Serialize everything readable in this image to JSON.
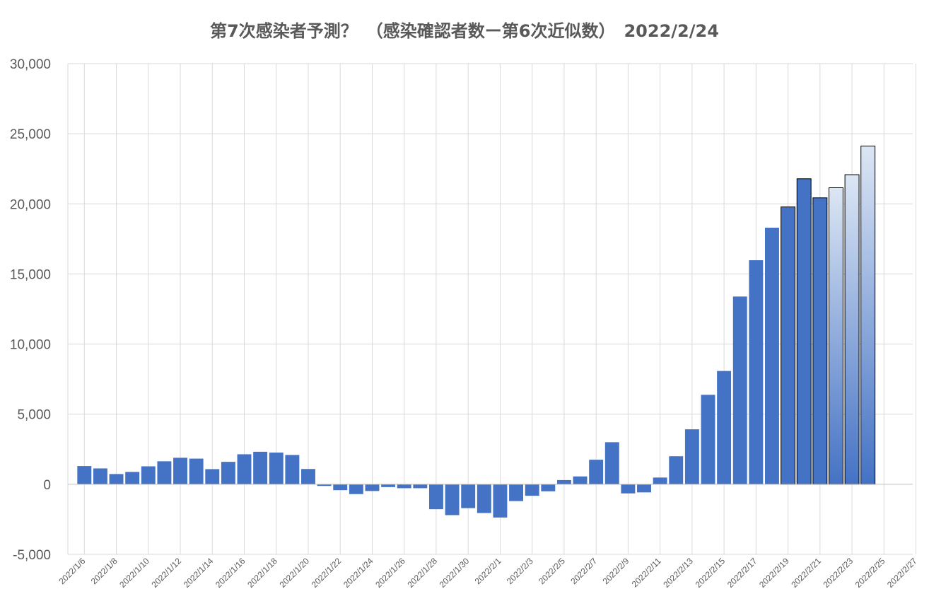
{
  "chart_data": {
    "type": "bar",
    "title": "第7次感染者予測？　（感染確認者数ー第6次近似数）　2022/2/24",
    "xlabel": "",
    "ylabel": "",
    "ylim": [
      -5000,
      30000
    ],
    "yticks": [
      30000,
      25000,
      20000,
      15000,
      10000,
      5000,
      0,
      -5000
    ],
    "ytick_labels": [
      "30,000",
      "25,000",
      "20,000",
      "15,000",
      "10,000",
      "5,000",
      "0",
      "-5,000"
    ],
    "x_range": [
      "2022/1/6",
      "2022/2/27"
    ],
    "xtick_labels": [
      "2022/1/6",
      "2022/1/8",
      "2022/1/10",
      "2022/1/12",
      "2022/1/14",
      "2022/1/16",
      "2022/1/18",
      "2022/1/20",
      "2022/1/22",
      "2022/1/24",
      "2022/1/26",
      "2022/1/28",
      "2022/1/30",
      "2022/2/1",
      "2022/2/3",
      "2022/2/5",
      "2022/2/7",
      "2022/2/9",
      "2022/2/11",
      "2022/2/13",
      "2022/2/15",
      "2022/2/17",
      "2022/2/19",
      "2022/2/21",
      "2022/2/23",
      "2022/2/25",
      "2022/2/27"
    ],
    "grid": true,
    "legend": "none",
    "colors": {
      "bar": "#4472C4",
      "outline": "#000000",
      "forecast_top": "#DCE6F4",
      "forecast_bottom": "#4472C4",
      "grid": "#D9D9D9",
      "axis": "#BFBFBF",
      "text": "#595959"
    },
    "categories": [
      "2022/1/6",
      "2022/1/7",
      "2022/1/8",
      "2022/1/9",
      "2022/1/10",
      "2022/1/11",
      "2022/1/12",
      "2022/1/13",
      "2022/1/14",
      "2022/1/15",
      "2022/1/16",
      "2022/1/17",
      "2022/1/18",
      "2022/1/19",
      "2022/1/20",
      "2022/1/21",
      "2022/1/22",
      "2022/1/23",
      "2022/1/24",
      "2022/1/25",
      "2022/1/26",
      "2022/1/27",
      "2022/1/28",
      "2022/1/29",
      "2022/1/30",
      "2022/1/31",
      "2022/2/1",
      "2022/2/2",
      "2022/2/3",
      "2022/2/4",
      "2022/2/5",
      "2022/2/6",
      "2022/2/7",
      "2022/2/8",
      "2022/2/9",
      "2022/2/10",
      "2022/2/11",
      "2022/2/12",
      "2022/2/13",
      "2022/2/14",
      "2022/2/15",
      "2022/2/16",
      "2022/2/17",
      "2022/2/18",
      "2022/2/19",
      "2022/2/20",
      "2022/2/21",
      "2022/2/22",
      "2022/2/23",
      "2022/2/24"
    ],
    "values": [
      1300,
      1130,
      730,
      880,
      1280,
      1640,
      1890,
      1830,
      1080,
      1600,
      2140,
      2320,
      2260,
      2090,
      1090,
      -120,
      -420,
      -700,
      -480,
      -200,
      -280,
      -280,
      -1780,
      -2200,
      -1700,
      -2050,
      -2370,
      -1200,
      -820,
      -500,
      300,
      560,
      1750,
      3000,
      -650,
      -580,
      480,
      2000,
      3920,
      6380,
      8080,
      13390,
      15980,
      18300,
      19780,
      21790,
      20430,
      21150,
      22080,
      24120
    ],
    "bar_styles": [
      "plain",
      "plain",
      "plain",
      "plain",
      "plain",
      "plain",
      "plain",
      "plain",
      "plain",
      "plain",
      "plain",
      "plain",
      "plain",
      "plain",
      "plain",
      "plain",
      "plain",
      "plain",
      "plain",
      "plain",
      "plain",
      "plain",
      "plain",
      "plain",
      "plain",
      "plain",
      "plain",
      "plain",
      "plain",
      "plain",
      "plain",
      "plain",
      "plain",
      "plain",
      "plain",
      "plain",
      "plain",
      "plain",
      "plain",
      "plain",
      "plain",
      "plain",
      "plain",
      "plain",
      "outlined",
      "outlined",
      "outlined",
      "forecast",
      "forecast",
      "forecast"
    ]
  }
}
